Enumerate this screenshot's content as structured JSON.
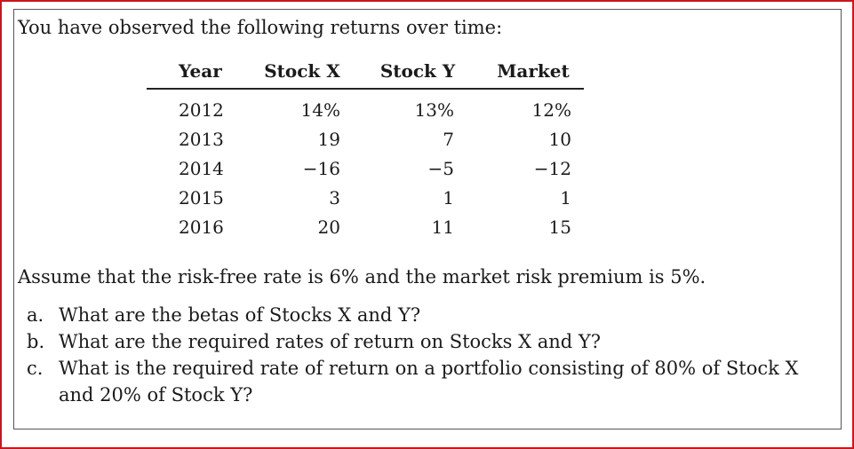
{
  "intro": "You have observed the following returns over time:",
  "table": {
    "headers": [
      "Year",
      "Stock X",
      "Stock Y",
      "Market"
    ],
    "rows": [
      [
        "2012",
        "14%",
        "13%",
        "12%"
      ],
      [
        "2013",
        "19",
        "7",
        "10"
      ],
      [
        "2014",
        "−16",
        "−5",
        "−12"
      ],
      [
        "2015",
        "3",
        "1",
        "1"
      ],
      [
        "2016",
        "20",
        "11",
        "15"
      ]
    ]
  },
  "assumption": "Assume that the risk-free rate is 6% and the market risk premium is 5%.",
  "questions": [
    {
      "mark": "a.",
      "text": "What are the betas of Stocks X and Y?"
    },
    {
      "mark": "b.",
      "text": "What are the required rates of return on Stocks X and Y?"
    },
    {
      "mark": "c.",
      "text": "What is the required rate of return on a portfolio consisting of 80% of Stock X and 20% of Stock Y?"
    }
  ]
}
